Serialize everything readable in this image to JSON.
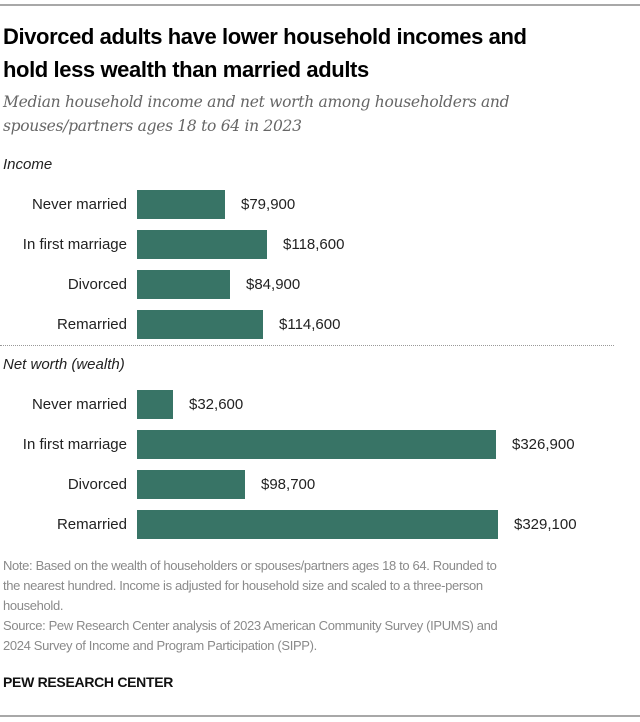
{
  "chart_data": {
    "type": "bar",
    "orientation": "horizontal",
    "title": "Divorced adults have lower household incomes and hold less wealth than married adults",
    "title_lines": [
      "Divorced adults have lower household incomes and",
      "hold less wealth than married adults"
    ],
    "subtitle_lines": [
      "Median household income and net worth among householders and",
      "spouses/partners ages 18 to 64 in 2023"
    ],
    "panels": [
      {
        "name": "Income",
        "categories": [
          "Never married",
          "In first marriage",
          "Divorced",
          "Remarried"
        ],
        "values": [
          79900,
          118600,
          84900,
          114600
        ],
        "labels": [
          "$79,900",
          "$118,600",
          "$84,900",
          "$114,600"
        ]
      },
      {
        "name": "Net worth (wealth)",
        "categories": [
          "Never married",
          "In first marriage",
          "Divorced",
          "Remarried"
        ],
        "values": [
          32600,
          326900,
          98700,
          329100
        ],
        "labels": [
          "$32,600",
          "$326,900",
          "$98,700",
          "$329,100"
        ]
      }
    ],
    "shared_scale_max": 329100,
    "bar_color": "#387466",
    "grid": false
  },
  "note_lines": [
    "Note: Based on the wealth of householders or spouses/partners ages 18 to 64. Rounded to",
    "the nearest hundred. Income is adjusted for household size and scaled to a three-person",
    "household.",
    "Source: Pew Research Center analysis of 2023 American Community Survey (IPUMS) and",
    "2024 Survey of Income and Program Participation (SIPP)."
  ],
  "brand": "PEW RESEARCH CENTER"
}
